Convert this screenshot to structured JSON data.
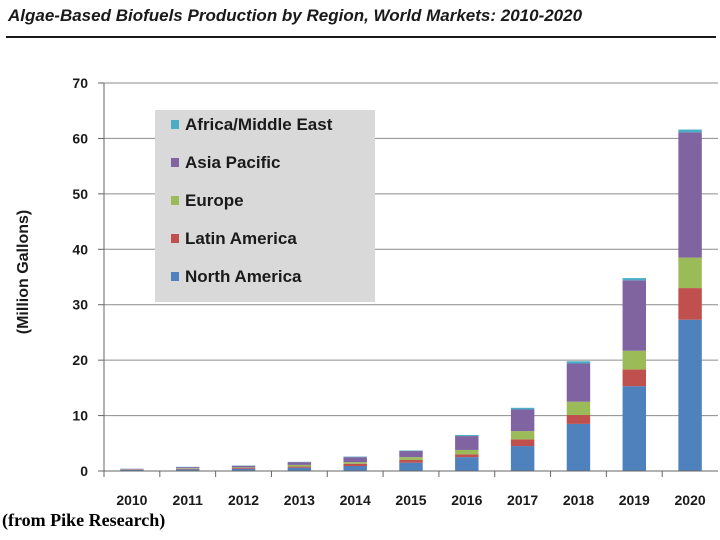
{
  "chart_data": {
    "type": "bar",
    "stacked": true,
    "title": "Algae-Based Biofuels Production by Region, World Markets:  2010-2020",
    "xlabel": "",
    "ylabel": "(Million Gallons)",
    "ylim": [
      0,
      70
    ],
    "yticks": [
      0,
      10,
      20,
      30,
      40,
      50,
      60,
      70
    ],
    "grid": true,
    "legend_position": "top-left",
    "categories": [
      "2010",
      "2011",
      "2012",
      "2013",
      "2014",
      "2015",
      "2016",
      "2017",
      "2018",
      "2019",
      "2020"
    ],
    "series": [
      {
        "name": "North America",
        "color": "#4f81bd",
        "values": [
          0.2,
          0.3,
          0.4,
          0.6,
          0.9,
          1.5,
          2.5,
          4.5,
          8.5,
          15.3,
          27.3
        ]
      },
      {
        "name": "Latin America",
        "color": "#c0504d",
        "values": [
          0.05,
          0.1,
          0.15,
          0.2,
          0.4,
          0.5,
          0.5,
          1.2,
          1.6,
          3.0,
          5.7
        ]
      },
      {
        "name": "Europe",
        "color": "#9bbb59",
        "values": [
          0.05,
          0.1,
          0.1,
          0.3,
          0.3,
          0.5,
          0.8,
          1.5,
          2.4,
          3.4,
          5.5
        ]
      },
      {
        "name": "Asia Pacific",
        "color": "#8064a2",
        "values": [
          0.1,
          0.2,
          0.3,
          0.5,
          0.9,
          1.1,
          2.5,
          3.9,
          6.9,
          12.7,
          22.6
        ]
      },
      {
        "name": "Africa/Middle East",
        "color": "#4bacc6",
        "values": [
          0.02,
          0.05,
          0.05,
          0.05,
          0.1,
          0.1,
          0.2,
          0.3,
          0.4,
          0.4,
          0.5
        ]
      }
    ]
  },
  "source": "(from Pike Research)"
}
